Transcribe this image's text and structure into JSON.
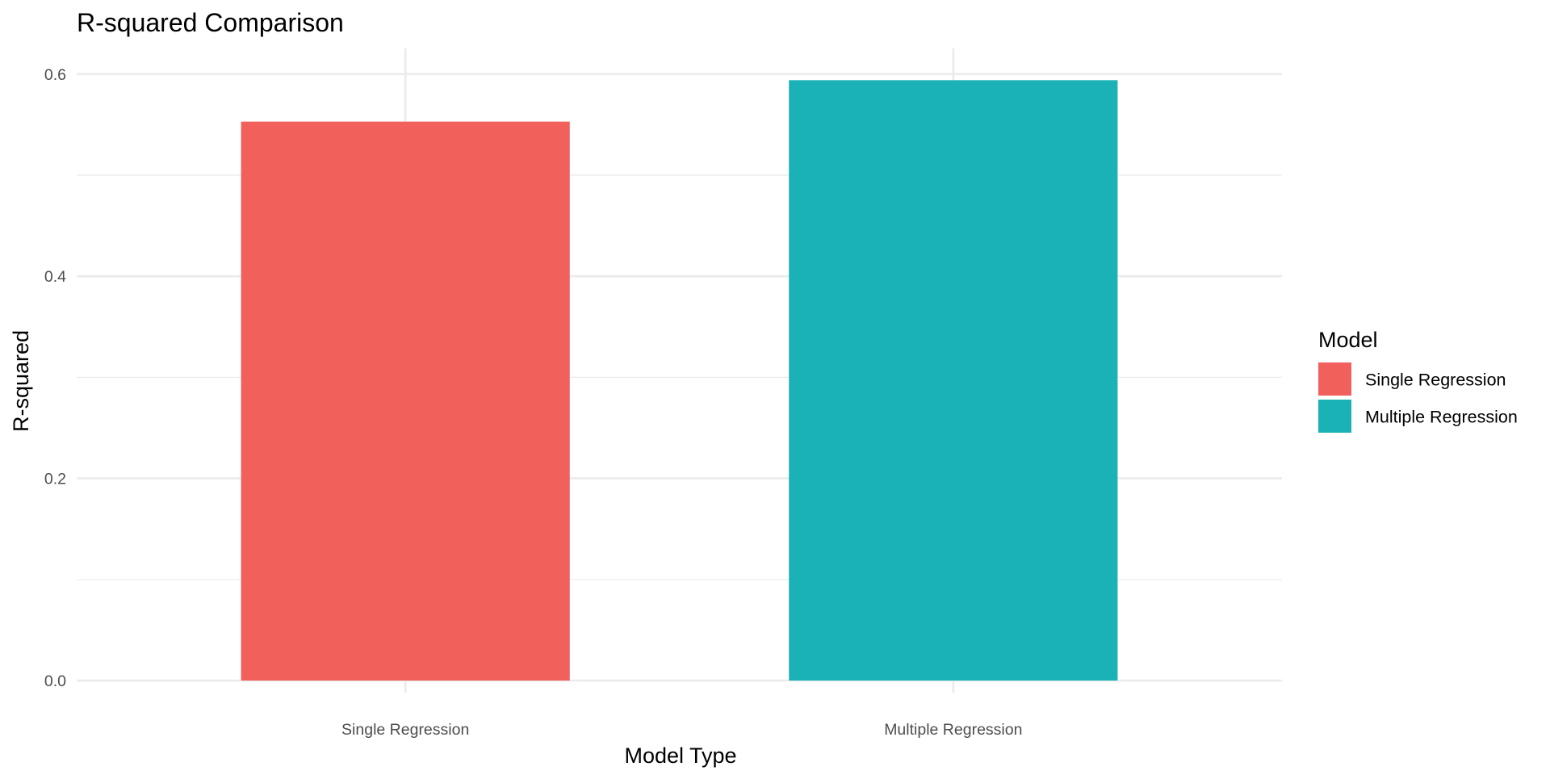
{
  "chart_data": {
    "type": "bar",
    "title": "R-squared Comparison",
    "xlabel": "Model Type",
    "ylabel": "R-squared",
    "categories": [
      "Single Regression",
      "Multiple Regression"
    ],
    "values": [
      0.553,
      0.594
    ],
    "colors": [
      "#F2605C",
      "#1AB2B7"
    ],
    "ylim": [
      0,
      0.62
    ],
    "yticks": [
      "0.0",
      "0.2",
      "0.4",
      "0.6"
    ],
    "ytick_values": [
      0,
      0.2,
      0.4,
      0.6
    ],
    "grid": true,
    "legend": {
      "title": "Model",
      "placement": "right",
      "items": [
        "Single Regression",
        "Multiple Regression"
      ]
    }
  }
}
